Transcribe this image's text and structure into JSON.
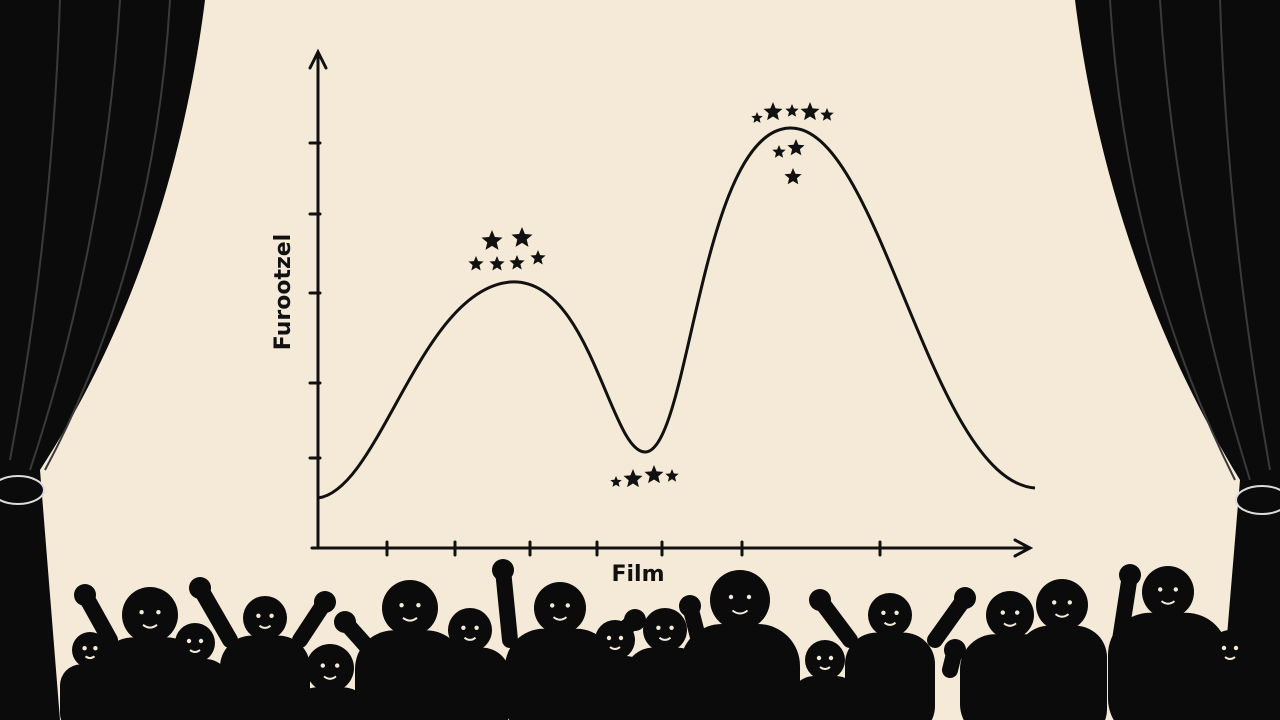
{
  "illustration": {
    "y_axis_label": "Furootzel",
    "x_axis_label": "Film"
  }
}
